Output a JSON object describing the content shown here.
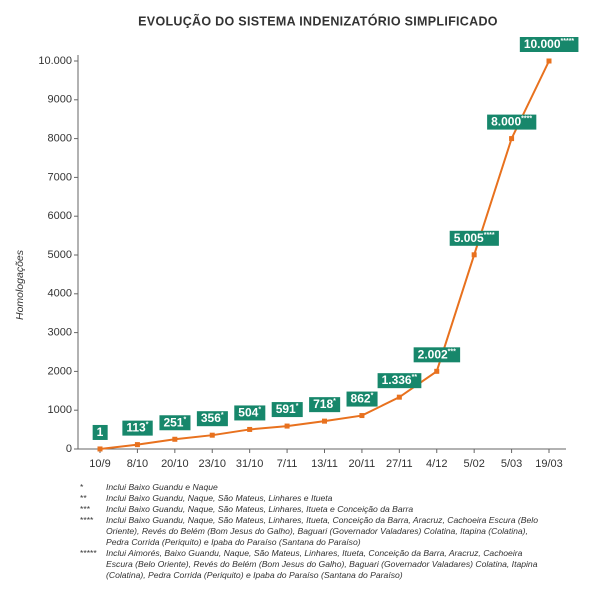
{
  "chart_data": {
    "type": "line",
    "title": "EVOLUÇÃO DO SISTEMA INDENIZATÓRIO SIMPLIFICADO",
    "y_label": "Homologações",
    "categories": [
      "10/9",
      "8/10",
      "20/10",
      "23/10",
      "31/10",
      "7/11",
      "13/11",
      "20/11",
      "27/11",
      "4/12",
      "5/02",
      "5/03",
      "19/03"
    ],
    "series": [
      {
        "name": "Homologações",
        "color": "#e8711e",
        "values": [
          1,
          113,
          251,
          356,
          504,
          591,
          718,
          862,
          1336,
          2002,
          5005,
          8000,
          10000
        ],
        "value_labels": [
          "1",
          "113*",
          "251*",
          "356*",
          "504*",
          "591*",
          "718*",
          "862*",
          "1.336**",
          "2.002***",
          "5.005****",
          "8.000****",
          "10.000*****"
        ]
      }
    ],
    "label_color": "#17876b",
    "ylim": [
      0,
      10000
    ],
    "yticks": [
      0,
      1000,
      2000,
      3000,
      4000,
      5000,
      6000,
      7000,
      8000,
      9000,
      {
        "value": 10000,
        "label": "10.000"
      }
    ]
  },
  "footnotes": [
    {
      "marker": "*",
      "text": "Inclui Baixo Guandu e Naque"
    },
    {
      "marker": "**",
      "text": "Inclui Baixo Guandu, Naque, São Mateus, Linhares e Itueta"
    },
    {
      "marker": "***",
      "text": "Inclui Baixo Guandu, Naque, São Mateus, Linhares, Itueta e Conceição da Barra"
    },
    {
      "marker": "****",
      "text": "Inclui Baixo Guandu, Naque, São Mateus, Linhares, Itueta, Conceição da Barra, Aracruz, Cachoeira Escura (Belo Oriente), Revés do Belém (Bom Jesus do Galho), Baguari (Governador Valadares) Colatina, Itapina (Colatina), Pedra Corrida (Periquito) e Ipaba do Paraíso (Santana do Paraíso)"
    },
    {
      "marker": "*****",
      "text": "Inclui Aimorés, Baixo Guandu, Naque, São Mateus, Linhares, Itueta, Conceição da Barra, Aracruz, Cachoeira Escura (Belo Oriente), Revés do Belém (Bom Jesus do Galho), Baguari (Governador Valadares) Colatina, Itapina (Colatina), Pedra Corrida (Periquito) e Ipaba do Paraíso (Santana do Paraíso)"
    }
  ]
}
